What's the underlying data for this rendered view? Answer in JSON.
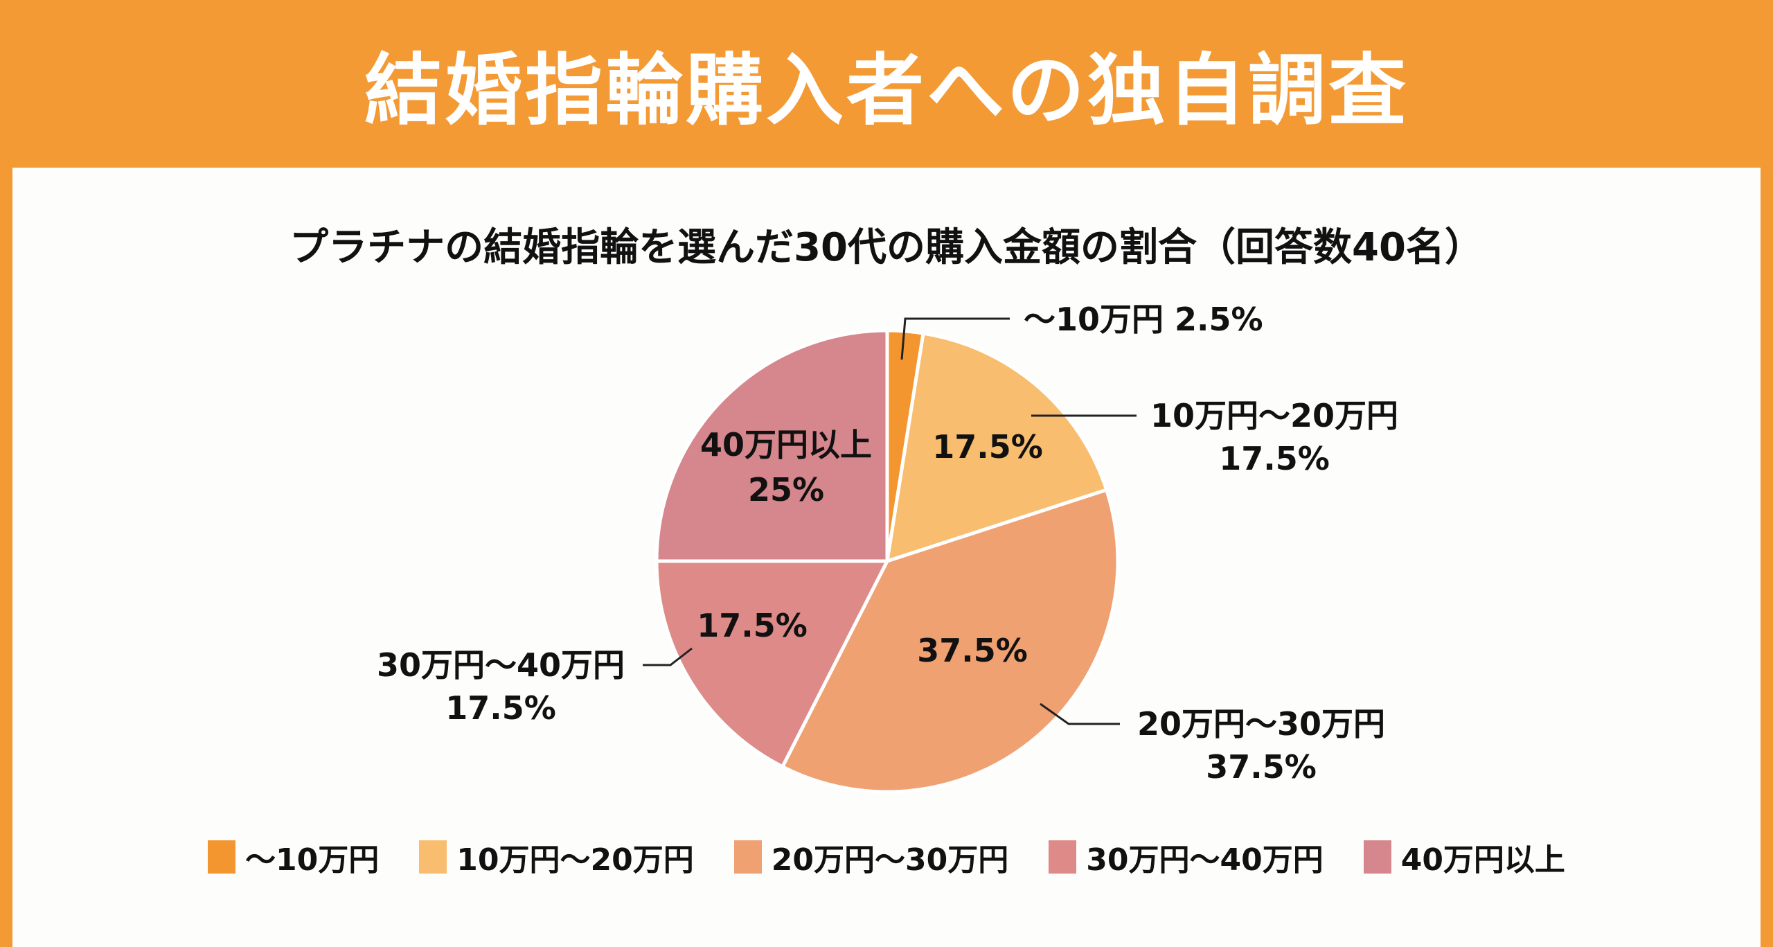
{
  "header": {
    "title": "結婚指輪購入者への独自調査"
  },
  "chart_data": {
    "type": "pie",
    "title": "プラチナの結婚指輪を選んだ30代の購入金額の割合（回答数40名）",
    "categories": [
      "～10万円",
      "10万円～20万円",
      "20万円～30万円",
      "30万円～40万円",
      "40万円以上"
    ],
    "values": [
      2.5,
      17.5,
      37.5,
      17.5,
      25
    ],
    "value_labels": [
      "2.5%",
      "17.5%",
      "37.5%",
      "17.5%",
      "25%"
    ],
    "colors": [
      "#F4962F",
      "#F8BD6E",
      "#F0A172",
      "#DE8A88",
      "#D5878D"
    ],
    "legend": "bottom",
    "annotations": {
      "outer": [
        {
          "line1": "～10万円 2.5%"
        },
        {
          "line1": "10万円～20万円",
          "line2": "17.5%"
        },
        {
          "line1": "20万円～30万円",
          "line2": "37.5%"
        },
        {
          "line1": "30万円～40万円",
          "line2": "17.5%"
        }
      ],
      "inner": [
        {
          "line1": "17.5%"
        },
        {
          "line1": "37.5%"
        },
        {
          "line1": "17.5%"
        },
        {
          "line1": "40万円以上",
          "line2": "25%"
        }
      ]
    }
  }
}
